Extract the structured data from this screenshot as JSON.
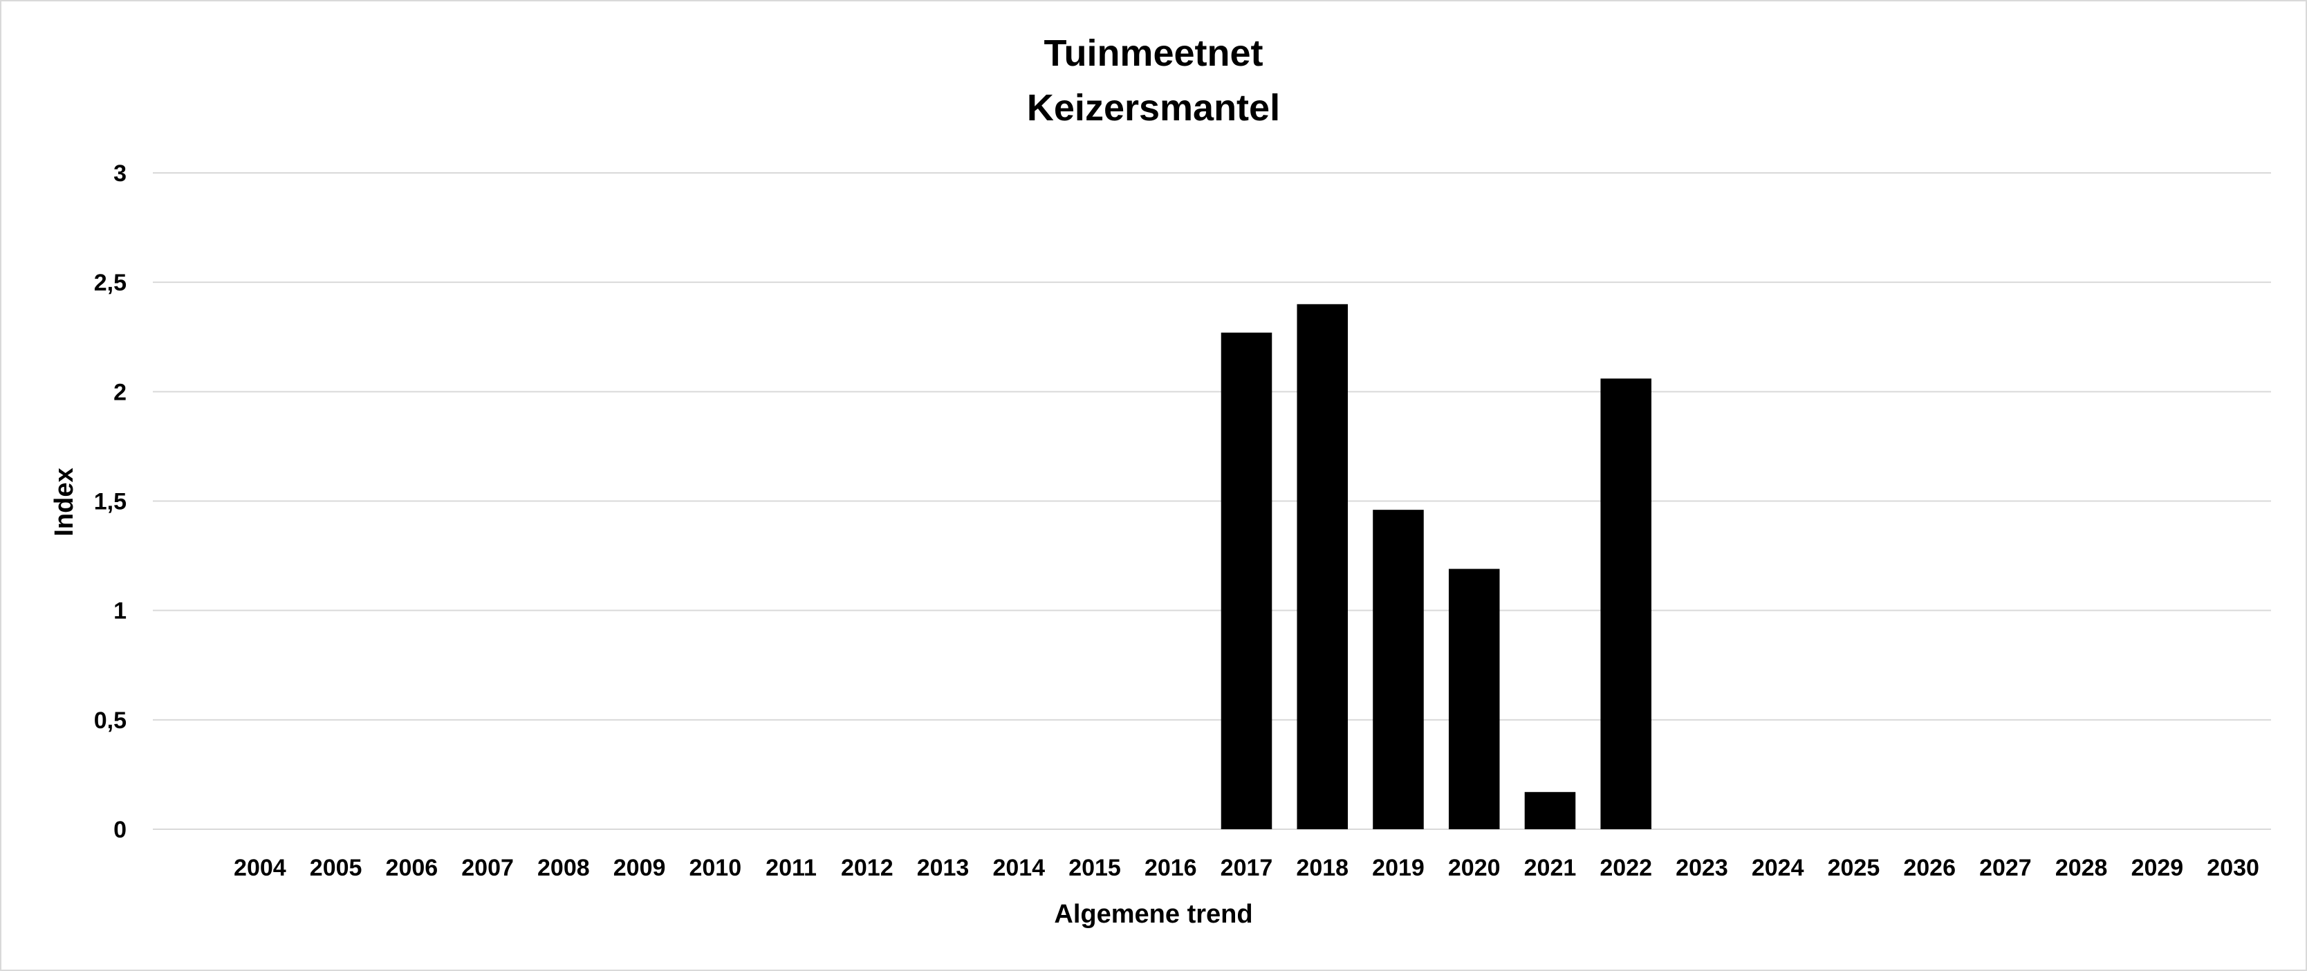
{
  "chart_data": {
    "type": "bar",
    "title": "Tuinmeetnet",
    "subtitle": "Keizersmantel",
    "xlabel": "Algemene trend",
    "ylabel": "Index",
    "ylim": [
      0,
      3
    ],
    "y_ticks": [
      "0",
      "0,5",
      "1",
      "1,5",
      "2",
      "2,5",
      "3"
    ],
    "grid": true,
    "legend": "none",
    "bar_color": "#000000",
    "gridline_color": "#d9d9d9",
    "categories": [
      "2004",
      "2005",
      "2006",
      "2007",
      "2008",
      "2009",
      "2010",
      "2011",
      "2012",
      "2013",
      "2014",
      "2015",
      "2016",
      "2017",
      "2018",
      "2019",
      "2020",
      "2021",
      "2022",
      "2023",
      "2024",
      "2025",
      "2026",
      "2027",
      "2028",
      "2029",
      "2030"
    ],
    "values": [
      null,
      null,
      null,
      null,
      null,
      null,
      null,
      null,
      null,
      null,
      null,
      null,
      null,
      2.27,
      2.4,
      1.46,
      1.19,
      0.17,
      2.06,
      null,
      null,
      null,
      null,
      null,
      null,
      null,
      null
    ]
  }
}
